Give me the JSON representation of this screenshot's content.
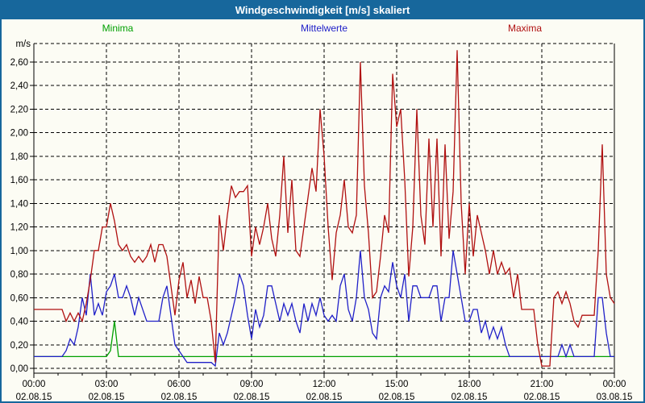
{
  "window": {
    "title": "Windgeschwindigkeit [m/s] skaliert"
  },
  "legend": [
    {
      "label": "Minima",
      "color": "#00a000"
    },
    {
      "label": "Mittelwerte",
      "color": "#2020c8"
    },
    {
      "label": "Maxima",
      "color": "#b01010"
    }
  ],
  "chart_data": {
    "type": "line",
    "title": "Windgeschwindigkeit [m/s] skaliert",
    "ylabel": "m/s",
    "ylim": [
      0,
      2.75
    ],
    "ytick_step": 0.2,
    "ytick_max": 2.6,
    "decimal_separator": ",",
    "grid": "dashed",
    "legend_position": "top",
    "x_start_hour": 0,
    "x_end_hour": 24,
    "xtick_interval_hours": 3,
    "minor_xtick_interval_hours": 1,
    "x_tick_labels": [
      {
        "time": "00:00",
        "date": "02.08.15"
      },
      {
        "time": "03:00",
        "date": "02.08.15"
      },
      {
        "time": "06:00",
        "date": "02.08.15"
      },
      {
        "time": "09:00",
        "date": "02.08.15"
      },
      {
        "time": "12:00",
        "date": "02.08.15"
      },
      {
        "time": "15:00",
        "date": "02.08.15"
      },
      {
        "time": "18:00",
        "date": "02.08.15"
      },
      {
        "time": "21:00",
        "date": "02.08.15"
      },
      {
        "time": "00:00",
        "date": "03.08.15"
      }
    ],
    "interval_minutes": 10,
    "series": [
      {
        "name": "Minima",
        "color": "#00a000",
        "values": [
          0.1,
          0.1,
          0.1,
          0.1,
          0.1,
          0.1,
          0.1,
          0.1,
          0.1,
          0.1,
          0.1,
          0.1,
          0.1,
          0.1,
          0.1,
          0.1,
          0.1,
          0.1,
          0.1,
          0.15,
          0.4,
          0.1,
          0.1,
          0.1,
          0.1,
          0.1,
          0.1,
          0.1,
          0.1,
          0.1,
          0.1,
          0.1,
          0.1,
          0.1,
          0.1,
          0.1,
          0.1,
          0.1,
          0.1,
          0.1,
          0.1,
          0.1,
          0.1,
          0.1,
          0.1,
          0.1,
          0.1,
          0.1,
          0.1,
          0.1,
          0.1,
          0.1,
          0.1,
          0.1,
          0.1,
          0.1,
          0.1,
          0.1,
          0.1,
          0.1,
          0.1,
          0.1,
          0.1,
          0.1,
          0.1,
          0.1,
          0.1,
          0.1,
          0.1,
          0.1,
          0.1,
          0.1,
          0.1,
          0.1,
          0.1,
          0.1,
          0.1,
          0.1,
          0.1,
          0.1,
          0.1,
          0.1,
          0.1,
          0.1,
          0.1,
          0.1,
          0.1,
          0.1,
          0.1,
          0.1,
          0.1,
          0.1,
          0.1,
          0.1,
          0.1,
          0.1,
          0.1,
          0.1,
          0.1,
          0.1,
          0.1,
          0.1,
          0.1,
          0.1,
          0.1,
          0.1,
          0.1,
          0.1,
          0.1,
          0.1,
          0.1,
          0.1,
          0.1,
          0.1,
          0.1,
          0.1,
          0.1,
          0.1,
          0.1,
          0.1,
          0.1,
          0.1,
          0.1,
          0.1,
          0.1,
          0.1,
          0.1,
          0.1,
          0.1,
          0.1,
          0.1,
          0.1,
          0.1,
          0.1,
          0.1,
          0.1,
          0.1,
          0.1,
          0.1,
          0.1,
          0.1,
          0.1,
          0.1,
          0.1,
          0.1
        ]
      },
      {
        "name": "Mittelwerte",
        "color": "#2020c8",
        "values": [
          0.1,
          0.1,
          0.1,
          0.1,
          0.1,
          0.1,
          0.1,
          0.1,
          0.15,
          0.25,
          0.2,
          0.35,
          0.6,
          0.45,
          0.8,
          0.45,
          0.55,
          0.45,
          0.65,
          0.7,
          0.8,
          0.6,
          0.6,
          0.7,
          0.6,
          0.45,
          0.6,
          0.5,
          0.4,
          0.4,
          0.4,
          0.4,
          0.6,
          0.7,
          0.45,
          0.2,
          0.15,
          0.1,
          0.05,
          0.05,
          0.05,
          0.05,
          0.05,
          0.05,
          0.05,
          0.02,
          0.3,
          0.2,
          0.3,
          0.45,
          0.6,
          0.8,
          0.7,
          0.45,
          0.25,
          0.5,
          0.35,
          0.45,
          0.7,
          0.7,
          0.55,
          0.4,
          0.55,
          0.45,
          0.55,
          0.4,
          0.3,
          0.55,
          0.4,
          0.55,
          0.45,
          0.6,
          0.45,
          0.4,
          0.45,
          0.4,
          0.7,
          0.8,
          0.5,
          0.4,
          0.6,
          1.0,
          0.6,
          0.5,
          0.3,
          0.25,
          0.6,
          0.7,
          0.65,
          0.9,
          0.7,
          0.6,
          0.8,
          0.4,
          0.7,
          0.7,
          0.6,
          0.6,
          0.6,
          0.7,
          0.7,
          0.4,
          0.6,
          0.6,
          1.0,
          0.8,
          0.6,
          0.4,
          0.4,
          0.5,
          0.5,
          0.3,
          0.4,
          0.25,
          0.35,
          0.25,
          0.35,
          0.2,
          0.1,
          0.1,
          0.1,
          0.1,
          0.1,
          0.1,
          0.1,
          0.1,
          0.1,
          0.1,
          0.1,
          0.1,
          0.1,
          0.2,
          0.1,
          0.2,
          0.1,
          0.1,
          0.1,
          0.1,
          0.1,
          0.1,
          0.6,
          0.6,
          0.3,
          0.1,
          0.1
        ]
      },
      {
        "name": "Maxima",
        "color": "#b01010",
        "values": [
          0.5,
          0.5,
          0.5,
          0.5,
          0.5,
          0.5,
          0.5,
          0.5,
          0.4,
          0.47,
          0.4,
          0.47,
          0.4,
          0.55,
          0.75,
          1.0,
          1.0,
          1.2,
          1.2,
          1.4,
          1.25,
          1.05,
          1.0,
          1.05,
          0.95,
          0.9,
          0.95,
          0.9,
          0.95,
          1.05,
          0.9,
          1.05,
          1.05,
          0.95,
          0.7,
          0.45,
          0.75,
          0.9,
          0.6,
          0.75,
          0.55,
          0.78,
          0.6,
          0.6,
          0.4,
          0.05,
          1.3,
          1.0,
          1.3,
          1.55,
          1.45,
          1.5,
          1.5,
          1.55,
          0.95,
          1.2,
          1.05,
          1.2,
          1.4,
          1.1,
          0.95,
          1.3,
          1.8,
          1.15,
          1.6,
          1.0,
          0.95,
          1.2,
          1.45,
          1.7,
          1.5,
          2.2,
          1.8,
          1.2,
          0.75,
          1.15,
          1.3,
          1.6,
          1.2,
          1.15,
          1.3,
          2.6,
          1.55,
          1.15,
          0.6,
          0.65,
          0.95,
          1.3,
          1.15,
          2.5,
          2.05,
          2.2,
          1.6,
          0.78,
          1.2,
          2.2,
          1.3,
          1.05,
          1.95,
          1.2,
          1.95,
          0.95,
          1.9,
          1.1,
          1.5,
          2.7,
          1.4,
          0.8,
          1.4,
          0.95,
          1.3,
          1.15,
          1.0,
          0.8,
          1.0,
          0.8,
          0.9,
          0.8,
          0.85,
          0.6,
          0.8,
          0.5,
          0.5,
          0.5,
          0.5,
          0.2,
          0.02,
          0.02,
          0.02,
          0.6,
          0.65,
          0.55,
          0.65,
          0.55,
          0.4,
          0.35,
          0.45,
          0.45,
          0.45,
          0.45,
          1.0,
          1.9,
          0.8,
          0.6,
          0.55
        ]
      }
    ]
  }
}
